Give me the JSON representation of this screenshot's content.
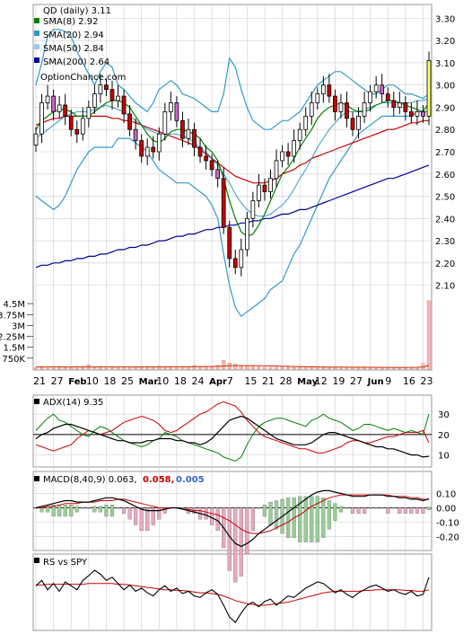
{
  "chart_data": [
    {
      "type": "candlestick",
      "panel": "price",
      "title": "QD (daily) 3.11",
      "watermark": "OptionChance.com",
      "yticks": [
        "3.30",
        "3.20",
        "3.10",
        "3.00",
        "2.90",
        "2.80",
        "2.70",
        "2.60",
        "2.50",
        "2.40",
        "2.30",
        "2.20",
        "2.10"
      ],
      "ylim": [
        2.05,
        3.35
      ],
      "legend": [
        {
          "label": "SMA(8) 2.92",
          "color": "#008000"
        },
        {
          "label": "SMA(20) 2.94",
          "color": "#3399cc"
        },
        {
          "label": "SMA(50) 2.84",
          "color": "#99ccee"
        },
        {
          "label": "SMA(200) 2.64",
          "color": "#000099"
        }
      ],
      "xticks": [
        "21",
        "27",
        "Feb",
        "10",
        "18",
        "25",
        "Mar",
        "10",
        "18",
        "24",
        "Apr",
        "7",
        "15",
        "21",
        "28",
        "May",
        "12",
        "19",
        "27",
        "Jun",
        "9",
        "16",
        "23"
      ],
      "close": [
        2.78,
        2.92,
        2.95,
        2.88,
        2.91,
        2.86,
        2.8,
        2.78,
        2.85,
        2.9,
        2.96,
        3.0,
        2.98,
        2.93,
        2.95,
        2.87,
        2.8,
        2.75,
        2.68,
        2.72,
        2.7,
        2.78,
        2.88,
        2.92,
        2.84,
        2.76,
        2.8,
        2.72,
        2.68,
        2.66,
        2.62,
        2.58,
        2.36,
        2.22,
        2.18,
        2.26,
        2.4,
        2.48,
        2.55,
        2.52,
        2.58,
        2.66,
        2.7,
        2.68,
        2.75,
        2.8,
        2.86,
        2.92,
        2.96,
        3.0,
        2.95,
        2.88,
        2.92,
        2.85,
        2.8,
        2.86,
        2.92,
        2.97,
        3.0,
        2.96,
        2.93,
        2.9,
        2.92,
        2.88,
        2.86,
        2.88,
        2.86,
        3.11
      ],
      "sma8": [
        2.8,
        2.84,
        2.86,
        2.88,
        2.89,
        2.89,
        2.88,
        2.86,
        2.86,
        2.86,
        2.88,
        2.9,
        2.92,
        2.93,
        2.93,
        2.92,
        2.9,
        2.86,
        2.82,
        2.78,
        2.75,
        2.74,
        2.76,
        2.79,
        2.8,
        2.8,
        2.79,
        2.78,
        2.76,
        2.72,
        2.7,
        2.66,
        2.58,
        2.48,
        2.4,
        2.34,
        2.32,
        2.33,
        2.37,
        2.42,
        2.48,
        2.54,
        2.6,
        2.63,
        2.67,
        2.72,
        2.76,
        2.8,
        2.85,
        2.88,
        2.9,
        2.91,
        2.92,
        2.91,
        2.89,
        2.88,
        2.88,
        2.89,
        2.91,
        2.92,
        2.93,
        2.93,
        2.92,
        2.91,
        2.9,
        2.89,
        2.88,
        2.92
      ],
      "sma20": [
        2.76,
        2.78,
        2.8,
        2.82,
        2.84,
        2.86,
        2.87,
        2.88,
        2.88,
        2.88,
        2.89,
        2.9,
        2.91,
        2.9,
        2.89,
        2.88,
        2.86,
        2.84,
        2.82,
        2.8,
        2.79,
        2.78,
        2.78,
        2.78,
        2.78,
        2.77,
        2.76,
        2.74,
        2.72,
        2.7,
        2.67,
        2.64,
        2.6,
        2.56,
        2.51,
        2.47,
        2.44,
        2.42,
        2.41,
        2.41,
        2.42,
        2.44,
        2.46,
        2.49,
        2.53,
        2.58,
        2.62,
        2.67,
        2.72,
        2.76,
        2.8,
        2.83,
        2.86,
        2.88,
        2.88,
        2.88,
        2.89,
        2.9,
        2.91,
        2.92,
        2.92,
        2.92,
        2.92,
        2.92,
        2.92,
        2.93,
        2.93,
        2.94
      ],
      "sma50": [
        2.82,
        2.83,
        2.84,
        2.85,
        2.85,
        2.86,
        2.86,
        2.86,
        2.86,
        2.86,
        2.86,
        2.86,
        2.86,
        2.85,
        2.85,
        2.84,
        2.84,
        2.83,
        2.82,
        2.81,
        2.8,
        2.79,
        2.78,
        2.77,
        2.76,
        2.75,
        2.74,
        2.73,
        2.71,
        2.69,
        2.67,
        2.65,
        2.63,
        2.61,
        2.59,
        2.58,
        2.57,
        2.56,
        2.56,
        2.56,
        2.57,
        2.58,
        2.6,
        2.61,
        2.62,
        2.64,
        2.65,
        2.67,
        2.68,
        2.69,
        2.7,
        2.71,
        2.72,
        2.73,
        2.74,
        2.75,
        2.76,
        2.77,
        2.78,
        2.79,
        2.8,
        2.8,
        2.81,
        2.82,
        2.83,
        2.83,
        2.84,
        2.84
      ],
      "sma200": [
        2.18,
        2.19,
        2.19,
        2.2,
        2.2,
        2.21,
        2.21,
        2.22,
        2.22,
        2.23,
        2.23,
        2.24,
        2.24,
        2.25,
        2.26,
        2.26,
        2.27,
        2.27,
        2.28,
        2.28,
        2.29,
        2.3,
        2.3,
        2.31,
        2.32,
        2.32,
        2.33,
        2.33,
        2.34,
        2.35,
        2.35,
        2.36,
        2.36,
        2.37,
        2.37,
        2.38,
        2.38,
        2.39,
        2.39,
        2.4,
        2.4,
        2.41,
        2.42,
        2.42,
        2.43,
        2.44,
        2.44,
        2.45,
        2.46,
        2.47,
        2.48,
        2.49,
        2.5,
        2.51,
        2.52,
        2.53,
        2.54,
        2.55,
        2.56,
        2.57,
        2.58,
        2.58,
        2.59,
        2.6,
        2.61,
        2.62,
        2.63,
        2.64
      ],
      "upper": [
        3.0,
        3.1,
        3.22,
        3.25,
        3.25,
        3.24,
        3.22,
        3.15,
        3.1,
        3.05,
        3.0,
        3.06,
        3.1,
        3.08,
        3.0,
        2.98,
        2.95,
        2.92,
        2.9,
        2.88,
        2.92,
        2.98,
        3.0,
        3.02,
        3.0,
        2.96,
        2.95,
        2.94,
        2.92,
        2.9,
        2.88,
        2.88,
        2.96,
        3.12,
        3.08,
        2.98,
        2.9,
        2.84,
        2.82,
        2.8,
        2.8,
        2.82,
        2.84,
        2.84,
        2.86,
        2.88,
        2.92,
        2.96,
        3.0,
        3.02,
        3.04,
        3.06,
        3.06,
        3.04,
        3.02,
        3.0,
        2.98,
        2.96,
        2.96,
        2.98,
        3.0,
        3.0,
        2.98,
        2.96,
        2.96,
        2.95,
        2.94,
        2.96
      ],
      "lower": [
        2.5,
        2.48,
        2.46,
        2.44,
        2.46,
        2.5,
        2.56,
        2.62,
        2.66,
        2.7,
        2.72,
        2.72,
        2.72,
        2.72,
        2.76,
        2.76,
        2.76,
        2.74,
        2.72,
        2.7,
        2.66,
        2.62,
        2.6,
        2.58,
        2.56,
        2.56,
        2.56,
        2.54,
        2.52,
        2.5,
        2.46,
        2.4,
        2.24,
        2.1,
        2.0,
        1.96,
        1.98,
        2.0,
        2.02,
        2.04,
        2.08,
        2.1,
        2.12,
        2.18,
        2.24,
        2.28,
        2.34,
        2.4,
        2.46,
        2.52,
        2.58,
        2.62,
        2.66,
        2.7,
        2.74,
        2.78,
        2.8,
        2.82,
        2.84,
        2.86,
        2.86,
        2.86,
        2.86,
        2.86,
        2.86,
        2.88,
        2.88,
        2.88
      ]
    },
    {
      "type": "bar",
      "panel": "volume",
      "yticks": [
        "4.5M",
        "3.75M",
        "3M",
        "2.25M",
        "1.5M",
        "750K"
      ],
      "ylim": [
        0,
        5000000
      ],
      "values": [
        90000,
        120000,
        80000,
        150000,
        100000,
        110000,
        90000,
        140000,
        120000,
        300000,
        160000,
        100000,
        80000,
        120000,
        130000,
        110000,
        90000,
        150000,
        120000,
        100000,
        90000,
        200000,
        130000,
        110000,
        100000,
        140000,
        120000,
        250000,
        160000,
        180000,
        150000,
        260000,
        600000,
        420000,
        330000,
        210000,
        190000,
        230000,
        170000,
        150000,
        130000,
        140000,
        180000,
        160000,
        120000,
        110000,
        130000,
        150000,
        140000,
        120000,
        110000,
        100000,
        130000,
        120000,
        110000,
        100000,
        90000,
        110000,
        120000,
        100000,
        90000,
        110000,
        100000,
        95000,
        90000,
        110000,
        400000,
        4700000
      ],
      "avg": [
        150000,
        150000,
        150000,
        150000,
        150000,
        150000,
        150000,
        150000,
        150000,
        150000,
        150000,
        150000,
        150000,
        150000,
        150000,
        150000,
        150000,
        150000,
        150000,
        150000,
        150000,
        150000,
        150000,
        160000,
        160000,
        160000,
        160000,
        170000,
        170000,
        180000,
        180000,
        190000,
        210000,
        230000,
        240000,
        240000,
        240000,
        240000,
        240000,
        230000,
        220000,
        210000,
        200000,
        190000,
        180000,
        170000,
        160000,
        155000,
        150000,
        145000,
        140000,
        138000,
        136000,
        134000,
        132000,
        130000,
        128000,
        126000,
        124000,
        122000,
        120000,
        120000,
        120000,
        120000,
        120000,
        125000,
        140000,
        250000
      ]
    },
    {
      "type": "line",
      "panel": "adx",
      "label": "ADX(14) 9.35",
      "yticks": [
        "30",
        "20",
        "10"
      ],
      "ylim": [
        5,
        38
      ],
      "reference": 20,
      "adx": [
        18,
        20,
        21,
        23,
        24,
        25,
        25,
        24,
        23,
        22,
        21,
        20,
        19,
        18,
        17,
        17,
        16,
        16,
        16,
        17,
        17,
        18,
        18,
        18,
        17,
        17,
        16,
        16,
        15,
        16,
        18,
        21,
        24,
        27,
        28,
        29,
        28,
        26,
        24,
        22,
        20,
        18,
        17,
        16,
        15,
        15,
        15,
        16,
        18,
        20,
        21,
        21,
        20,
        19,
        18,
        17,
        16,
        15,
        14,
        14,
        13,
        13,
        12,
        11,
        10,
        10,
        9,
        9.35
      ],
      "pdi": [
        22,
        25,
        28,
        30,
        27,
        26,
        24,
        22,
        20,
        19,
        22,
        24,
        23,
        21,
        19,
        17,
        16,
        15,
        14,
        15,
        17,
        18,
        21,
        20,
        19,
        17,
        16,
        15,
        14,
        13,
        12,
        11,
        9,
        8,
        7,
        9,
        15,
        20,
        24,
        26,
        27,
        28,
        28,
        27,
        26,
        25,
        24,
        27,
        28,
        30,
        28,
        27,
        26,
        24,
        22,
        23,
        25,
        25,
        24,
        23,
        22,
        23,
        22,
        21,
        22,
        21,
        20,
        30
      ],
      "mdi": [
        15,
        14,
        13,
        12,
        13,
        14,
        15,
        18,
        20,
        22,
        21,
        20,
        21,
        22,
        24,
        26,
        27,
        28,
        29,
        28,
        27,
        25,
        22,
        21,
        22,
        24,
        26,
        28,
        30,
        31,
        33,
        35,
        36,
        35,
        34,
        31,
        27,
        24,
        21,
        19,
        18,
        17,
        16,
        15,
        14,
        13,
        13,
        12,
        11,
        11,
        12,
        13,
        14,
        16,
        17,
        17,
        16,
        16,
        17,
        18,
        19,
        19,
        20,
        21,
        21,
        21,
        22,
        16
      ]
    },
    {
      "type": "line",
      "panel": "macd",
      "label": "MACD(8,40,9) 0.063,",
      "signal_label": "0.058,",
      "hist_label": "0.005",
      "yticks": [
        "0.10",
        "0.00",
        "-0.10",
        "-0.20"
      ],
      "ylim": [
        -0.28,
        0.16
      ],
      "macd": [
        0.0,
        0.01,
        0.02,
        0.03,
        0.04,
        0.05,
        0.05,
        0.04,
        0.04,
        0.04,
        0.05,
        0.06,
        0.07,
        0.07,
        0.06,
        0.05,
        0.03,
        0.01,
        -0.01,
        -0.02,
        -0.02,
        -0.02,
        -0.01,
        0.0,
        0.0,
        -0.01,
        -0.02,
        -0.03,
        -0.04,
        -0.05,
        -0.07,
        -0.09,
        -0.14,
        -0.2,
        -0.25,
        -0.27,
        -0.25,
        -0.22,
        -0.18,
        -0.15,
        -0.12,
        -0.09,
        -0.06,
        -0.03,
        0.0,
        0.03,
        0.06,
        0.09,
        0.11,
        0.12,
        0.12,
        0.11,
        0.1,
        0.09,
        0.08,
        0.08,
        0.08,
        0.09,
        0.09,
        0.09,
        0.08,
        0.08,
        0.07,
        0.07,
        0.06,
        0.06,
        0.05,
        0.063
      ],
      "signal": [
        0.0,
        0.0,
        0.01,
        0.01,
        0.02,
        0.03,
        0.03,
        0.03,
        0.04,
        0.04,
        0.04,
        0.05,
        0.05,
        0.05,
        0.06,
        0.06,
        0.05,
        0.04,
        0.03,
        0.02,
        0.01,
        0.0,
        0.0,
        0.0,
        0.0,
        -0.01,
        -0.01,
        -0.02,
        -0.02,
        -0.03,
        -0.04,
        -0.05,
        -0.07,
        -0.09,
        -0.12,
        -0.15,
        -0.17,
        -0.18,
        -0.18,
        -0.17,
        -0.16,
        -0.14,
        -0.12,
        -0.1,
        -0.07,
        -0.05,
        -0.02,
        0.01,
        0.03,
        0.05,
        0.07,
        0.08,
        0.09,
        0.09,
        0.09,
        0.09,
        0.09,
        0.09,
        0.09,
        0.09,
        0.09,
        0.08,
        0.08,
        0.08,
        0.07,
        0.07,
        0.06,
        0.058
      ]
    },
    {
      "type": "line",
      "panel": "rs",
      "label": "RS vs SPY",
      "rs": [
        0.55,
        0.62,
        0.5,
        0.58,
        0.48,
        0.6,
        0.55,
        0.5,
        0.62,
        0.68,
        0.75,
        0.7,
        0.62,
        0.66,
        0.58,
        0.5,
        0.56,
        0.48,
        0.52,
        0.46,
        0.42,
        0.5,
        0.55,
        0.48,
        0.52,
        0.45,
        0.48,
        0.42,
        0.4,
        0.46,
        0.5,
        0.44,
        0.3,
        0.15,
        0.08,
        0.2,
        0.3,
        0.34,
        0.28,
        0.35,
        0.38,
        0.3,
        0.36,
        0.42,
        0.4,
        0.46,
        0.52,
        0.56,
        0.6,
        0.58,
        0.52,
        0.46,
        0.5,
        0.44,
        0.4,
        0.46,
        0.5,
        0.54,
        0.56,
        0.52,
        0.48,
        0.5,
        0.46,
        0.44,
        0.48,
        0.42,
        0.44,
        0.66
      ],
      "ma": [
        0.56,
        0.56,
        0.57,
        0.57,
        0.57,
        0.57,
        0.57,
        0.57,
        0.57,
        0.58,
        0.58,
        0.58,
        0.58,
        0.58,
        0.57,
        0.57,
        0.56,
        0.55,
        0.54,
        0.53,
        0.52,
        0.51,
        0.5,
        0.5,
        0.49,
        0.49,
        0.48,
        0.47,
        0.46,
        0.46,
        0.45,
        0.44,
        0.42,
        0.39,
        0.36,
        0.34,
        0.32,
        0.31,
        0.3,
        0.3,
        0.31,
        0.32,
        0.33,
        0.34,
        0.36,
        0.38,
        0.4,
        0.42,
        0.44,
        0.46,
        0.47,
        0.48,
        0.48,
        0.48,
        0.48,
        0.48,
        0.49,
        0.49,
        0.5,
        0.5,
        0.5,
        0.5,
        0.5,
        0.49,
        0.49,
        0.48,
        0.48,
        0.5
      ],
      "ylim": [
        0.0,
        0.9
      ]
    }
  ],
  "colors": {
    "up": "#ffff66",
    "down": "#cc0000",
    "neutral": "#cc66cc",
    "upper_band": "#dddd00",
    "grid": "#cccccc"
  }
}
